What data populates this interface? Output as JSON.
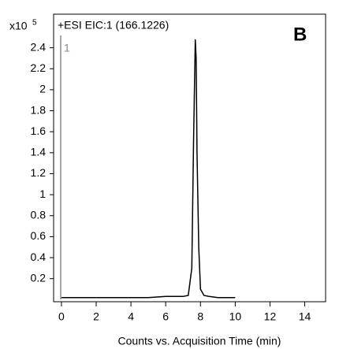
{
  "chart_data": {
    "type": "line",
    "title": "+ESI EIC:1 (166.1226)",
    "panel_label": "B",
    "trace_label": "1",
    "y_multiplier": "x10",
    "y_multiplier_exponent": 5,
    "xlabel": "Counts vs. Acquisition Time (min)",
    "x": [
      0,
      1,
      2,
      3,
      4,
      5,
      6,
      7,
      7.3,
      7.5,
      7.6,
      7.7,
      7.75,
      7.8,
      7.9,
      8.0,
      8.2,
      8.5,
      9,
      10
    ],
    "series": [
      {
        "name": "EIC",
        "color": "#000000",
        "values": [
          0.02,
          0.02,
          0.02,
          0.02,
          0.02,
          0.02,
          0.03,
          0.03,
          0.04,
          0.3,
          1.5,
          2.48,
          2.3,
          1.4,
          0.5,
          0.1,
          0.04,
          0.03,
          0.02,
          0.02
        ]
      }
    ],
    "xlim": [
      -0.45,
      15.2
    ],
    "ylim": [
      -0.02,
      2.72
    ],
    "xticks": [
      0,
      2,
      4,
      6,
      8,
      10,
      12,
      14
    ],
    "yticks": [
      0.2,
      0.4,
      0.6,
      0.8,
      1,
      1.2,
      1.4,
      1.6,
      1.8,
      2,
      2.2,
      2.4
    ]
  }
}
